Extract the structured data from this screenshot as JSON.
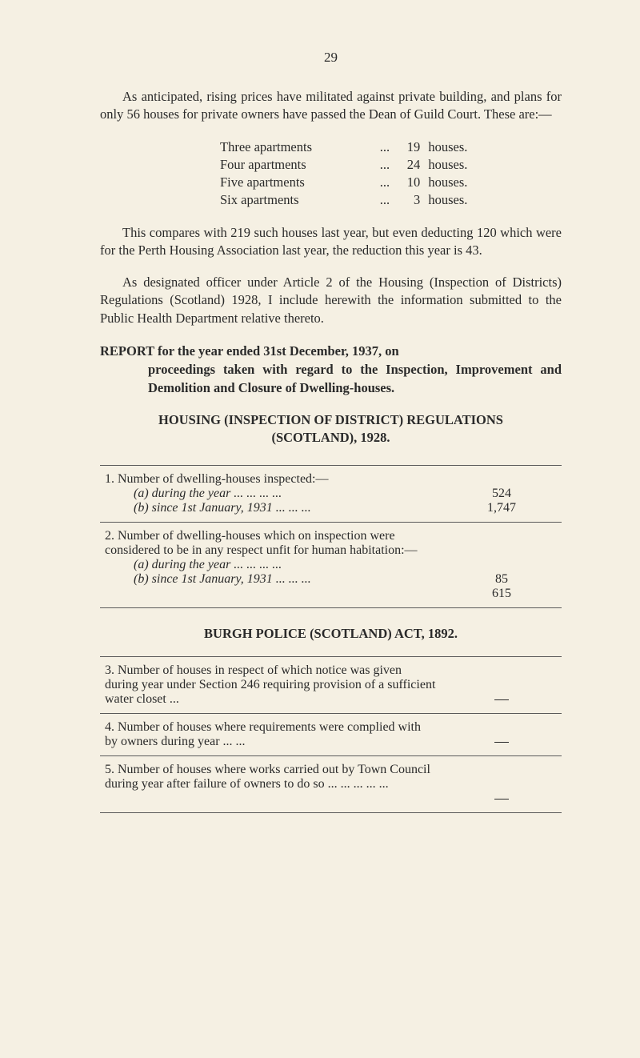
{
  "pageNumber": "29",
  "para1": "As anticipated, rising prices have militated against private building, and plans for only 56 houses for private owners have passed the Dean of Guild Court. These are:—",
  "apartments": [
    {
      "label": "Three apartments",
      "dots": "...",
      "num": "19",
      "word": "houses."
    },
    {
      "label": "Four apartments",
      "dots": "...",
      "num": "24",
      "word": "houses."
    },
    {
      "label": "Five apartments",
      "dots": "...",
      "num": "10",
      "word": "houses."
    },
    {
      "label": "Six apartments",
      "dots": "...",
      "num": "3",
      "word": "houses."
    }
  ],
  "para2": "This compares with 219 such houses last year, but even deducting 120 which were for the Perth Housing Association last year, the reduction this year is 43.",
  "para3": "As designated officer under Article 2 of the Housing (Inspection of Districts) Regulations (Scotland) 1928, I include herewith the information submitted to the Public Health Department relative thereto.",
  "reportHeading": {
    "line1a": "REPORT for the year ended 31st December, 1937, on",
    "line2": "proceedings taken with regard to the Inspection, Improvement and Demolition and Closure of Dwelling-houses."
  },
  "housingTitle": {
    "l1": "HOUSING (INSPECTION OF DISTRICT) REGULATIONS",
    "l2": "(SCOTLAND), 1928."
  },
  "table1": {
    "r1": {
      "lead": "1. Number of dwelling-houses inspected:—",
      "a": "(a) during the year     ...     ...     ...     ...",
      "aval": "524",
      "b": "(b) since 1st January, 1931 ...     ...     ...",
      "bval": "1,747"
    },
    "r2": {
      "lead": "2. Number of dwelling-houses which on inspection were considered to be in any respect unfit for human habitation:—",
      "a": "(a) during the year     ...     ...     ...     ...",
      "aval": "85",
      "b": "(b) since 1st January, 1931 ...     ...     ...",
      "bval": "615"
    }
  },
  "burghTitle": "BURGH POLICE (SCOTLAND) ACT, 1892.",
  "table2": {
    "r3": "3. Number of houses in respect of which notice was given during year under Section 246 requiring provision of a sufficient water closet     ...",
    "r4": "4. Number of houses where requirements were complied with by owners during year ...     ...",
    "r5": "5. Number of houses where works carried out by Town Council during year after failure of owners to do so   ...     ...     ...     ...     ..."
  }
}
